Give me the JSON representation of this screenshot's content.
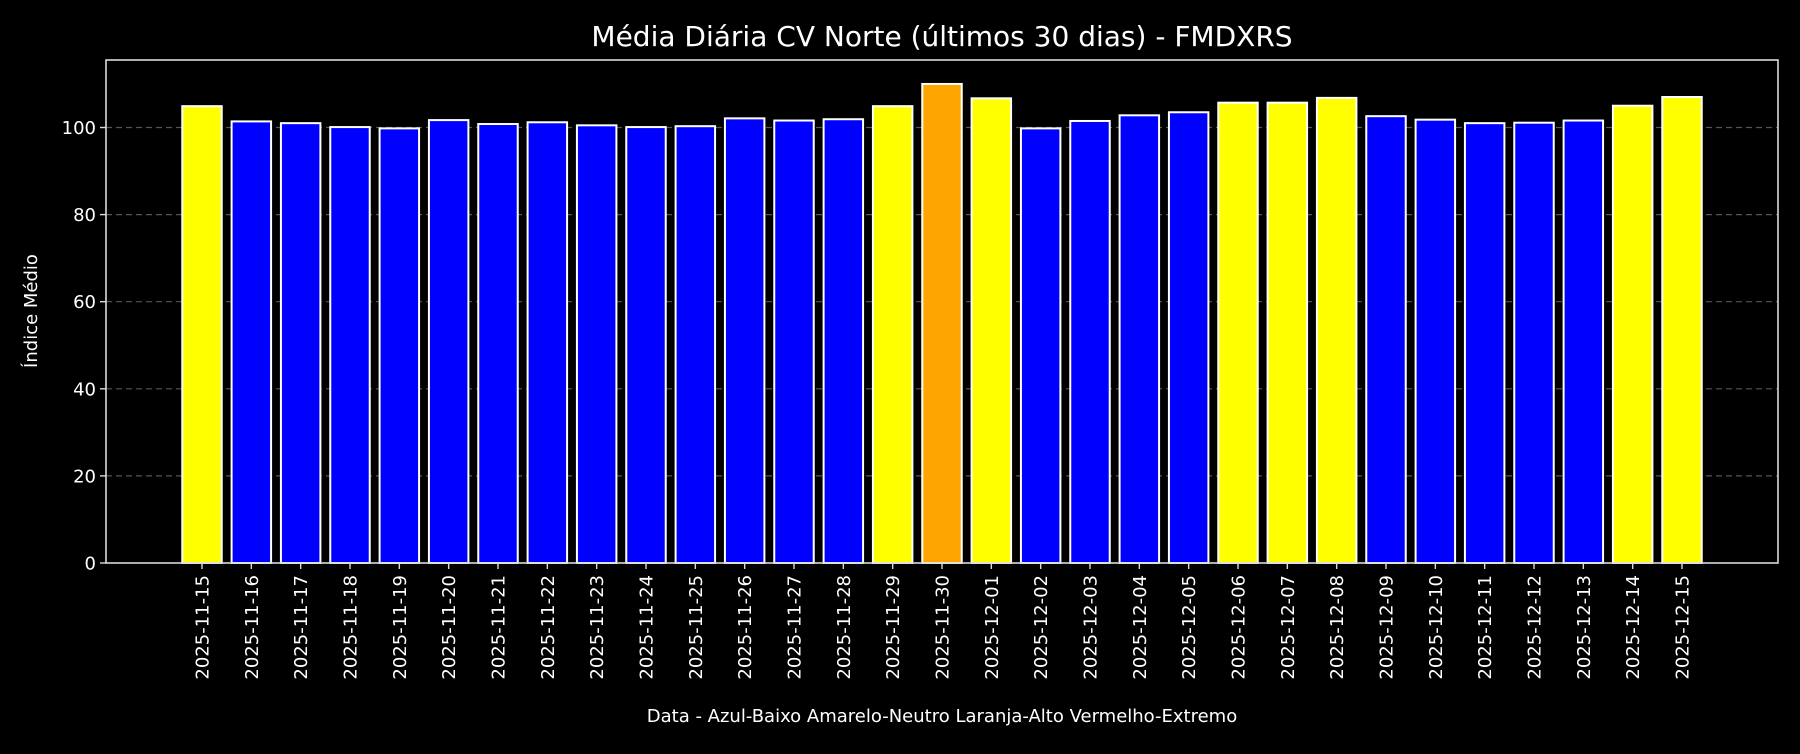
{
  "chart_data": {
    "type": "bar",
    "title": "Média Diária CV Norte (últimos 30 dias) - FMDXRS",
    "xlabel": "Data - Azul-Baixo Amarelo-Neutro Laranja-Alto Vermelho-Extremo",
    "ylabel": "Índice Médio",
    "ylim": [
      0,
      115.5
    ],
    "yticks": [
      0,
      20,
      40,
      60,
      80,
      100
    ],
    "grid": {
      "axis": "y",
      "style": "dashed",
      "color": "#555555"
    },
    "legend": null,
    "categories": [
      "2025-11-15",
      "2025-11-16",
      "2025-11-17",
      "2025-11-18",
      "2025-11-19",
      "2025-11-20",
      "2025-11-21",
      "2025-11-22",
      "2025-11-23",
      "2025-11-24",
      "2025-11-25",
      "2025-11-26",
      "2025-11-27",
      "2025-11-28",
      "2025-11-29",
      "2025-11-30",
      "2025-12-01",
      "2025-12-02",
      "2025-12-03",
      "2025-12-04",
      "2025-12-05",
      "2025-12-06",
      "2025-12-07",
      "2025-12-08",
      "2025-12-09",
      "2025-12-10",
      "2025-12-11",
      "2025-12-12",
      "2025-12-13",
      "2025-12-14",
      "2025-12-15"
    ],
    "values": [
      104.9,
      101.4,
      101.0,
      100.1,
      99.8,
      101.7,
      100.8,
      101.2,
      100.5,
      100.1,
      100.3,
      102.1,
      101.6,
      101.9,
      104.9,
      110.0,
      106.7,
      99.8,
      101.5,
      102.8,
      103.5,
      105.7,
      105.7,
      106.8,
      102.6,
      101.8,
      101.0,
      101.1,
      101.6,
      105.0,
      107.0
    ],
    "bar_categories": [
      "Neutro",
      "Baixo",
      "Baixo",
      "Baixo",
      "Baixo",
      "Baixo",
      "Baixo",
      "Baixo",
      "Baixo",
      "Baixo",
      "Baixo",
      "Baixo",
      "Baixo",
      "Baixo",
      "Neutro",
      "Alto",
      "Neutro",
      "Baixo",
      "Baixo",
      "Baixo",
      "Baixo",
      "Neutro",
      "Neutro",
      "Neutro",
      "Baixo",
      "Baixo",
      "Baixo",
      "Baixo",
      "Baixo",
      "Neutro",
      "Neutro"
    ],
    "color_map": {
      "Baixo": "#0000ff",
      "Neutro": "#ffff00",
      "Alto": "#ffa500",
      "Extremo": "#ff0000"
    },
    "bar_edge_color": "#ffffff",
    "background": "#000000",
    "axis_color": "#d9d9d9"
  }
}
